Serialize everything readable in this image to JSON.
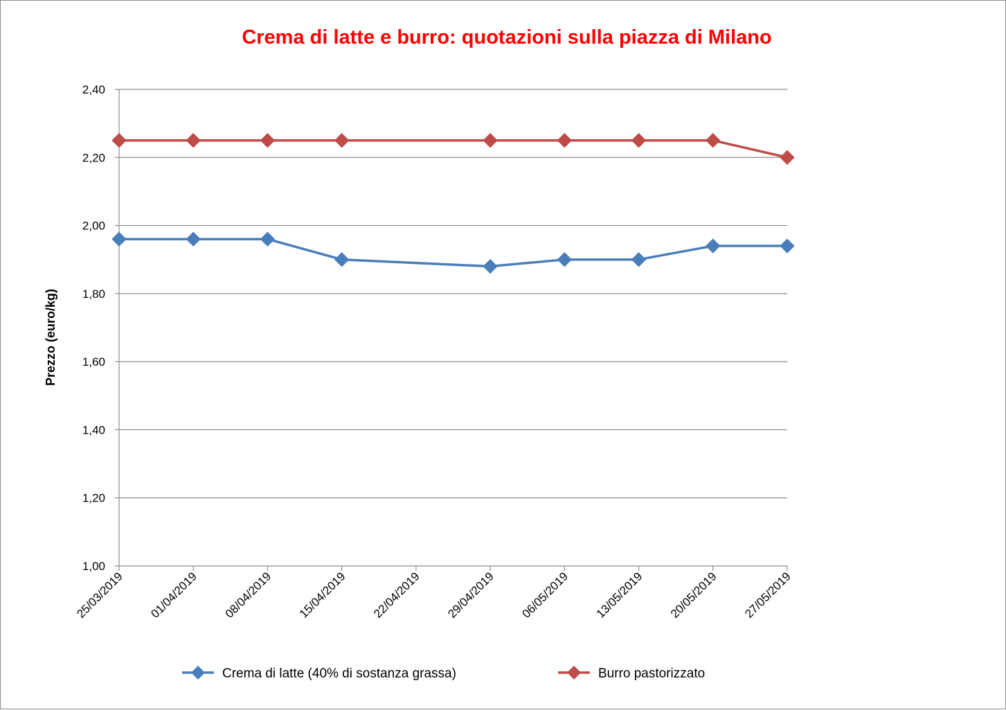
{
  "chart_data": {
    "type": "line",
    "title": "Crema di latte e burro: quotazioni sulla piazza di Milano",
    "xlabel": "",
    "ylabel": "Prezzo (euro/kg)",
    "categories": [
      "25/03/2019",
      "01/04/2019",
      "08/04/2019",
      "15/04/2019",
      "22/04/2019",
      "29/04/2019",
      "06/05/2019",
      "13/05/2019",
      "20/05/2019",
      "27/05/2019"
    ],
    "ylim": [
      1.0,
      2.4
    ],
    "yticks": [
      "1,00",
      "1,20",
      "1,40",
      "1,60",
      "1,80",
      "2,00",
      "2,20",
      "2,40"
    ],
    "grid": true,
    "legend_position": "bottom",
    "series": [
      {
        "name": "Crema di latte (40% di sostanza grassa)",
        "color": "#4a7ebb",
        "values": [
          1.96,
          1.96,
          1.96,
          1.9,
          null,
          1.88,
          1.9,
          1.9,
          1.94,
          1.94
        ]
      },
      {
        "name": "Burro pastorizzato",
        "color": "#be4b48",
        "values": [
          2.25,
          2.25,
          2.25,
          2.25,
          null,
          2.25,
          2.25,
          2.25,
          2.25,
          2.2
        ]
      }
    ]
  }
}
